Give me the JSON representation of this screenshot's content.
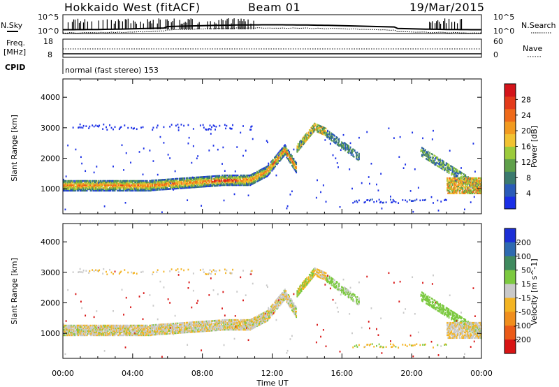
{
  "header": {
    "radar": "Hokkaido West (fitACF)",
    "beam": "Beam 01",
    "date": "19/Mar/2015"
  },
  "labels": {
    "nsky": "N.Sky",
    "nsearch": "N.Search",
    "freq_line1": "Freq.",
    "freq_line2": "[MHz]",
    "nave": "Nave",
    "cpid": "CPID",
    "cpid_value": "normal (fast stereo) 153",
    "nsky_top": "10^5",
    "nsky_bot": "10^0",
    "nsearch_top": "10^5",
    "nsearch_bot": "10^0",
    "freq_top": "18",
    "freq_bot": "8",
    "nave_top": "60",
    "nave_bot": "0"
  },
  "chart_data": [
    {
      "type": "heatmap",
      "title": "",
      "xlabel": "Time UT",
      "ylabel": "Slant Range [km]",
      "xticks": [
        "00:00",
        "04:00",
        "08:00",
        "12:00",
        "16:00",
        "20:00",
        "00:00"
      ],
      "yticks": [
        "1000",
        "2000",
        "3000",
        "4000"
      ],
      "xlim_hours": [
        0,
        24
      ],
      "ylim_km": [
        180,
        4600
      ],
      "colorbar": {
        "label": "Power [dB]",
        "ticks": [
          "4",
          "8",
          "12",
          "16",
          "20",
          "24",
          "28"
        ],
        "colors": [
          "#1a2fe6",
          "#2a5bb8",
          "#3b7a6e",
          "#5fa04a",
          "#9ccb3c",
          "#f1c232",
          "#f29a1f",
          "#ef6a1a",
          "#e33a1a",
          "#d4141a"
        ]
      }
    },
    {
      "type": "heatmap",
      "title": "",
      "xlabel": "Time UT",
      "ylabel": "Slant Range [km]",
      "xticks": [
        "00:00",
        "04:00",
        "08:00",
        "12:00",
        "16:00",
        "20:00",
        "00:00"
      ],
      "yticks": [
        "1000",
        "2000",
        "3000",
        "4000"
      ],
      "xlim_hours": [
        0,
        24
      ],
      "ylim_km": [
        180,
        4600
      ],
      "colorbar": {
        "label": "Velocity [m s^-1]",
        "ticks": [
          "200",
          "100",
          "50",
          "15",
          "-15",
          "-50",
          "-100",
          "-200"
        ],
        "colors": [
          "#1c2fd6",
          "#2e6ab0",
          "#3f8a5e",
          "#7cc940",
          "#c9c9c9",
          "#f3b423",
          "#f08e1d",
          "#ea5a18",
          "#d81414"
        ]
      }
    }
  ]
}
